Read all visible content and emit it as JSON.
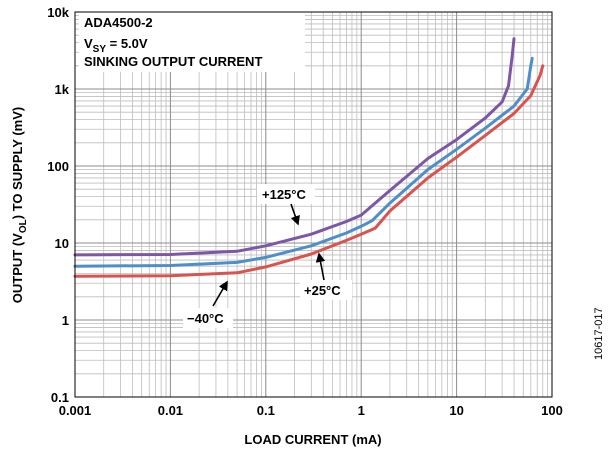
{
  "chart_data": {
    "type": "line",
    "title_lines": [
      "ADA4500-2",
      "V",
      "SY",
      " = 5.0V",
      "SINKING OUTPUT CURRENT"
    ],
    "xlabel": "LOAD CURRENT (mA)",
    "ylabel_parts": [
      "OUTPUT (V",
      "OL",
      ") TO SUPPLY (mV)"
    ],
    "xscale": "log",
    "yscale": "log",
    "xlim": [
      0.001,
      100
    ],
    "ylim": [
      0.1,
      10000
    ],
    "xticks": [
      0.001,
      0.01,
      0.1,
      1,
      10,
      100
    ],
    "xtick_labels": [
      "0.001",
      "0.01",
      "0.1",
      "1",
      "10",
      "100"
    ],
    "yticks": [
      0.1,
      1,
      10,
      100,
      1000,
      10000
    ],
    "ytick_labels": [
      "0.1",
      "1",
      "10",
      "100",
      "1k",
      "10k"
    ],
    "grid": true,
    "series": [
      {
        "name": "+125°C",
        "color": "#7b57a6",
        "x": [
          0.001,
          0.01,
          0.05,
          0.1,
          0.3,
          0.7,
          1.0,
          1.2,
          2.0,
          5.0,
          10,
          20,
          30,
          35,
          38,
          40
        ],
        "y": [
          7.0,
          7.1,
          7.8,
          9.2,
          13,
          19,
          23,
          28,
          48,
          125,
          220,
          420,
          680,
          1100,
          2500,
          4500
        ]
      },
      {
        "name": "+25°C",
        "color": "#4e8ec9",
        "x": [
          0.001,
          0.01,
          0.05,
          0.1,
          0.3,
          0.7,
          1.0,
          1.3,
          2.0,
          5.0,
          10,
          20,
          40,
          55,
          60,
          62
        ],
        "y": [
          5.0,
          5.1,
          5.6,
          6.5,
          9.2,
          13.5,
          16.5,
          19.5,
          33,
          90,
          165,
          310,
          600,
          1000,
          2000,
          2500
        ]
      },
      {
        "name": "−40°C",
        "color": "#d9534f",
        "x": [
          0.001,
          0.01,
          0.05,
          0.1,
          0.3,
          0.7,
          1.0,
          1.4,
          2.0,
          5.0,
          10,
          20,
          40,
          60,
          75,
          80
        ],
        "y": [
          3.7,
          3.75,
          4.1,
          4.9,
          7.2,
          10.8,
          13,
          15.5,
          26,
          70,
          130,
          250,
          480,
          820,
          1500,
          2000
        ]
      }
    ],
    "annotations": [
      {
        "text": "+125°C",
        "series": 0
      },
      {
        "text": "+25°C",
        "series": 1
      },
      {
        "text": "−40°C",
        "series": 2
      }
    ],
    "figure_id": "10617-017"
  }
}
